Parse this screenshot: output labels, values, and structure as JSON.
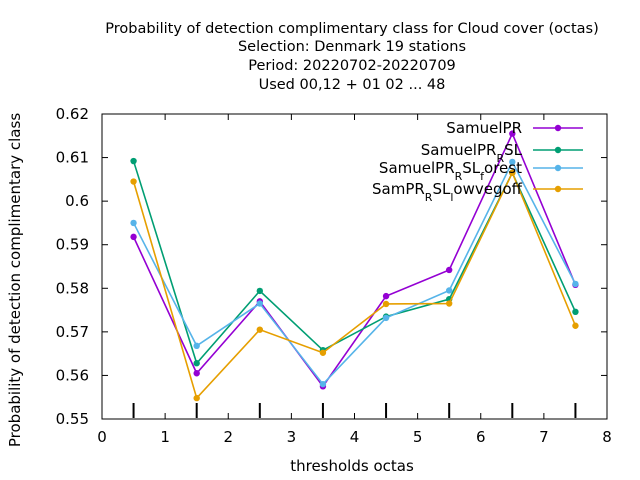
{
  "chart_data": {
    "type": "line",
    "title_lines": [
      "Probability of detection complimentary class  for Cloud cover (octas)",
      "Selection: Denmark     19 stations",
      "Period: 20220702-20220709",
      "Used  00,12  + 01 02 ... 48"
    ],
    "xlabel": "thresholds octas",
    "ylabel": "Probability of detection complimentary class",
    "xlim": [
      0,
      8
    ],
    "ylim": [
      0.55,
      0.62
    ],
    "xticks": [
      "0",
      "1",
      "2",
      "3",
      "4",
      "5",
      "6",
      "7",
      "8"
    ],
    "yticks": [
      "0.55",
      "0.56",
      "0.57",
      "0.58",
      "0.59",
      "0.6",
      "0.61",
      "0.62"
    ],
    "x": [
      0.5,
      1.5,
      2.5,
      3.5,
      4.5,
      5.5,
      6.5,
      7.5
    ],
    "grid": false,
    "legend_position": "top-right",
    "series": [
      {
        "name": "SamuelPR",
        "color": "#9400d3",
        "values": [
          0.5918,
          0.5605,
          0.577,
          0.5575,
          0.5782,
          0.5842,
          0.6155,
          0.5808
        ]
      },
      {
        "name": "SamuelPR_RSL",
        "color": "#009e73",
        "values": [
          0.6092,
          0.5628,
          0.5794,
          0.5658,
          0.5735,
          0.5775,
          0.6065,
          0.5746
        ]
      },
      {
        "name": "SamuelPR_RSL_forest",
        "color": "#56b4e9",
        "values": [
          0.595,
          0.5668,
          0.5765,
          0.558,
          0.5732,
          0.5795,
          0.609,
          0.581
        ]
      },
      {
        "name": "SamPR_RSL_lowvegoff",
        "color": "#e69f00",
        "values": [
          0.6045,
          0.5548,
          0.5705,
          0.5652,
          0.5764,
          0.5765,
          0.6065,
          0.5714
        ]
      }
    ],
    "legend_labels": [
      {
        "base": "SamuelPR",
        "sub1": "",
        "mid": "",
        "sub2": "",
        "tail": ""
      },
      {
        "base": "SamuelPR",
        "sub1": "R",
        "mid": "SL",
        "sub2": "",
        "tail": ""
      },
      {
        "base": "SamuelPR",
        "sub1": "R",
        "mid": "SL",
        "sub2": "f",
        "tail": "orest"
      },
      {
        "base": "SamPR",
        "sub1": "R",
        "mid": "SL",
        "sub2": "l",
        "tail": "owvegoff"
      }
    ]
  }
}
